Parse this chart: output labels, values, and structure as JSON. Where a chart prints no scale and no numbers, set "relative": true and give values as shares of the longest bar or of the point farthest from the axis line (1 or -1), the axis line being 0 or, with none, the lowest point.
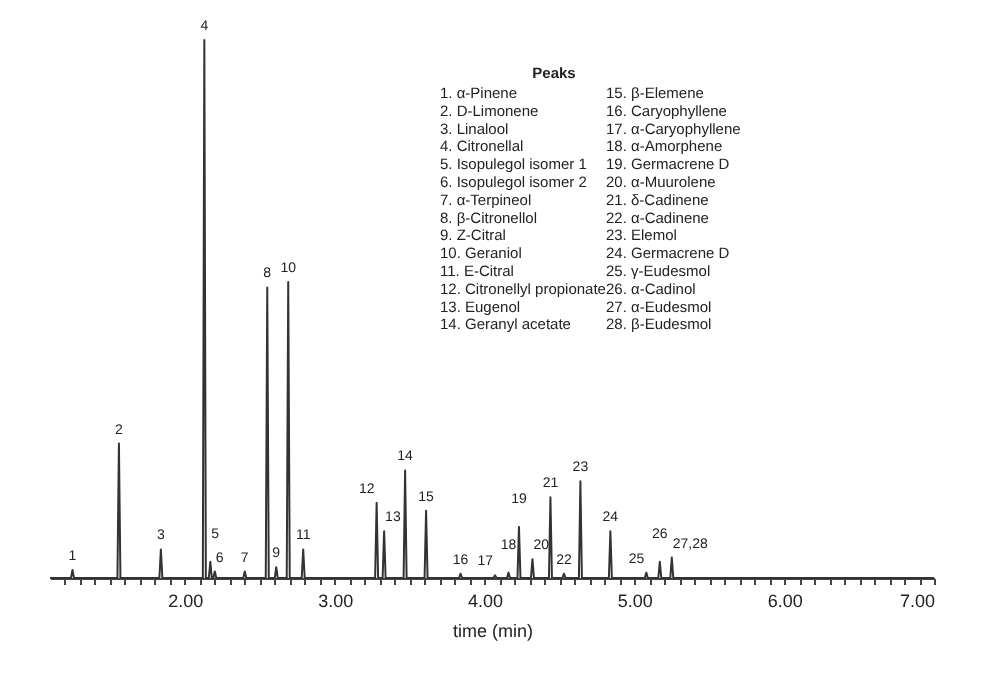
{
  "chart_data": {
    "type": "line",
    "relative": true,
    "xlabel": "time (min)",
    "xlim": [
      1.1,
      7.0
    ],
    "xticks": [
      {
        "value": 1.2,
        "label": null
      },
      {
        "value": 1.3,
        "label": null
      },
      {
        "value": 1.4,
        "label": null
      },
      {
        "value": 1.5,
        "label": null
      },
      {
        "value": 1.6,
        "label": null
      },
      {
        "value": 1.7,
        "label": null
      },
      {
        "value": 1.8,
        "label": null
      },
      {
        "value": 1.9,
        "label": null
      },
      {
        "value": 2,
        "label": "2.00"
      },
      {
        "value": 2.1,
        "label": null
      },
      {
        "value": 2.2,
        "label": null
      },
      {
        "value": 2.3,
        "label": null
      },
      {
        "value": 2.4,
        "label": null
      },
      {
        "value": 2.5,
        "label": null
      },
      {
        "value": 2.6,
        "label": null
      },
      {
        "value": 2.7,
        "label": null
      },
      {
        "value": 2.8,
        "label": null
      },
      {
        "value": 2.9,
        "label": null
      },
      {
        "value": 3,
        "label": "3.00"
      },
      {
        "value": 3.1,
        "label": null
      },
      {
        "value": 3.2,
        "label": null
      },
      {
        "value": 3.3,
        "label": null
      },
      {
        "value": 3.4,
        "label": null
      },
      {
        "value": 3.5,
        "label": null
      },
      {
        "value": 3.6,
        "label": null
      },
      {
        "value": 3.7,
        "label": null
      },
      {
        "value": 3.8,
        "label": null
      },
      {
        "value": 3.9,
        "label": null
      },
      {
        "value": 4,
        "label": "4.00"
      },
      {
        "value": 4.1,
        "label": null
      },
      {
        "value": 4.2,
        "label": null
      },
      {
        "value": 4.3,
        "label": null
      },
      {
        "value": 4.4,
        "label": null
      },
      {
        "value": 4.5,
        "label": null
      },
      {
        "value": 4.6,
        "label": null
      },
      {
        "value": 4.7,
        "label": null
      },
      {
        "value": 4.8,
        "label": null
      },
      {
        "value": 4.9,
        "label": null
      },
      {
        "value": 5,
        "label": "5.00"
      },
      {
        "value": 5.1,
        "label": null
      },
      {
        "value": 5.2,
        "label": null
      },
      {
        "value": 5.3,
        "label": null
      },
      {
        "value": 5.4,
        "label": null
      },
      {
        "value": 5.5,
        "label": null
      },
      {
        "value": 5.6,
        "label": null
      },
      {
        "value": 5.7,
        "label": null
      },
      {
        "value": 5.8,
        "label": null
      },
      {
        "value": 5.9,
        "label": null
      },
      {
        "value": 6,
        "label": "6.00"
      },
      {
        "value": 6.1,
        "label": null
      },
      {
        "value": 6.2,
        "label": null
      },
      {
        "value": 6.3,
        "label": null
      },
      {
        "value": 6.4,
        "label": null
      },
      {
        "value": 6.5,
        "label": null
      },
      {
        "value": 6.6,
        "label": null
      },
      {
        "value": 6.7,
        "label": null
      },
      {
        "value": 6.8,
        "label": null
      },
      {
        "value": 6.9,
        "label": null
      },
      {
        "value": 7,
        "label": "7.00"
      }
    ],
    "series": [
      {
        "color": "#333333",
        "x": [
          1.1,
          1.24,
          1.25,
          1.26,
          1.55,
          1.56,
          1.57,
          1.83,
          1.84,
          1.85,
          2.12,
          2.13,
          2.14,
          2.16,
          2.17,
          2.18,
          2.19,
          2.2,
          2.21,
          2.39,
          2.4,
          2.41,
          2.54,
          2.55,
          2.56,
          2.6,
          2.61,
          2.62,
          2.68,
          2.69,
          2.7,
          2.78,
          2.79,
          2.8,
          3.27,
          3.28,
          3.29,
          3.32,
          3.33,
          3.34,
          3.46,
          3.47,
          3.48,
          3.6,
          3.61,
          3.62,
          3.83,
          3.84,
          3.85,
          4.06,
          4.07,
          4.08,
          4.15,
          4.16,
          4.17,
          4.22,
          4.23,
          4.24,
          4.31,
          4.32,
          4.33,
          4.43,
          4.44,
          4.45,
          4.52,
          4.53,
          4.54,
          4.63,
          4.64,
          4.65,
          4.83,
          4.84,
          4.85,
          5.07,
          5.08,
          5.09,
          5.16,
          5.17,
          5.18,
          5.24,
          5.25,
          5.26,
          7.0
        ],
        "values": [
          0,
          0,
          0.015,
          0,
          0,
          0.25,
          0,
          0,
          0.053,
          0,
          0,
          1,
          0,
          0,
          0.03,
          0,
          0,
          0.012,
          0,
          0,
          0.012,
          0,
          0,
          0.54,
          0,
          0,
          0.02,
          0,
          0,
          0.55,
          0,
          0,
          0.053,
          0,
          0,
          0.14,
          0,
          0,
          0.087,
          0,
          0,
          0.2,
          0,
          0,
          0.125,
          0,
          0,
          0.008,
          0,
          0,
          0.005,
          0,
          0,
          0.01,
          0,
          0,
          0.095,
          0,
          0,
          0.035,
          0,
          0,
          0.15,
          0,
          0,
          0.008,
          0,
          0,
          0.18,
          0,
          0,
          0.087,
          0,
          0,
          0.01,
          0,
          0,
          0.03,
          0,
          0,
          0.038,
          0,
          0
        ]
      }
    ],
    "annotations": [
      {
        "text": "1",
        "x": 1.25,
        "y": 0.015
      },
      {
        "text": "2",
        "x": 1.56,
        "y": 0.25
      },
      {
        "text": "3",
        "x": 1.84,
        "y": 0.053
      },
      {
        "text": "4",
        "x": 2.13,
        "y": 1
      },
      {
        "text": "5",
        "x": 2.17,
        "y": 0.03
      },
      {
        "text": "6",
        "x": 2.2,
        "y": 0.012
      },
      {
        "text": "7",
        "x": 2.4,
        "y": 0.012
      },
      {
        "text": "8",
        "x": 2.55,
        "y": 0.54
      },
      {
        "text": "9",
        "x": 2.61,
        "y": 0.02
      },
      {
        "text": "10",
        "x": 2.69,
        "y": 0.55
      },
      {
        "text": "11",
        "x": 2.79,
        "y": 0.053
      },
      {
        "text": "12",
        "x": 3.28,
        "y": 0.14
      },
      {
        "text": "13",
        "x": 3.33,
        "y": 0.087
      },
      {
        "text": "14",
        "x": 3.47,
        "y": 0.2
      },
      {
        "text": "15",
        "x": 3.61,
        "y": 0.125
      },
      {
        "text": "16",
        "x": 3.84,
        "y": 0.008
      },
      {
        "text": "17",
        "x": 4.07,
        "y": 0.005
      },
      {
        "text": "18",
        "x": 4.16,
        "y": 0.01
      },
      {
        "text": "19",
        "x": 4.23,
        "y": 0.095
      },
      {
        "text": "20",
        "x": 4.32,
        "y": 0.035
      },
      {
        "text": "21",
        "x": 4.44,
        "y": 0.15
      },
      {
        "text": "22",
        "x": 4.53,
        "y": 0.008
      },
      {
        "text": "23",
        "x": 4.64,
        "y": 0.18
      },
      {
        "text": "24",
        "x": 4.84,
        "y": 0.087
      },
      {
        "text": "25",
        "x": 5.08,
        "y": 0.01
      },
      {
        "text": "26",
        "x": 5.17,
        "y": 0.03
      },
      {
        "text": "27,28",
        "x": 5.25,
        "y": 0.038
      },
      "Peaks",
      "1. α-Pinene",
      "2. D-Limonene",
      "3. Linalool",
      "4. Citronellal",
      "5. Isopulegol isomer 1",
      "6. Isopulegol isomer 2",
      "7. α-Terpineol",
      "8. β-Citronellol",
      "9. Z-Citral",
      "10. Geraniol",
      "11. E-Citral",
      "12. Citronellyl propionate",
      "13. Eugenol",
      "14. Geranyl acetate",
      "15. β-Elemene",
      "16. Caryophyllene",
      "17. α-Caryophyllene",
      "18. α-Amorphene",
      "19. Germacrene D",
      "20. α-Muurolene",
      "21. δ-Cadinene",
      "22. α-Cadinene",
      "23. Elemol",
      "24. Germacrene D",
      "25. γ-Eudesmol",
      "26. α-Cadinol",
      "27. α-Eudesmol",
      "28. β-Eudesmol"
    ]
  }
}
